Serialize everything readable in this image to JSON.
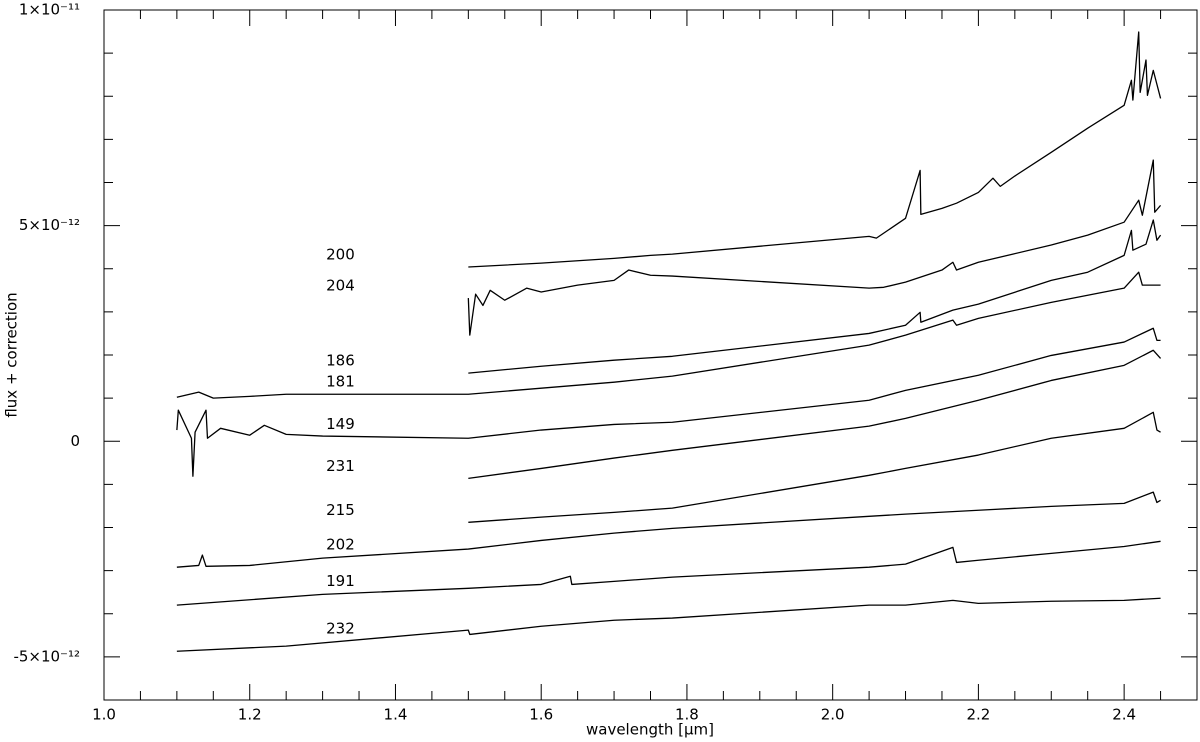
{
  "chart_data": {
    "type": "line",
    "xlabel": "wavelength [μm]",
    "ylabel": "flux + correction",
    "xlim": [
      1.0,
      2.5
    ],
    "ylim": [
      -6e-12,
      1e-11
    ],
    "xticks": [
      {
        "value": 1.0,
        "label": "1.0"
      },
      1.2,
      1.4,
      1.6,
      1.8,
      {
        "value": 2.0,
        "label": "2.0"
      },
      2.2,
      2.4
    ],
    "xminorticks": [
      1.05,
      1.1,
      1.15,
      1.25,
      1.3,
      1.35,
      1.45,
      1.5,
      1.55,
      1.65,
      1.7,
      1.75,
      1.85,
      1.9,
      1.95,
      2.05,
      2.1,
      2.15,
      2.25,
      2.3,
      2.35,
      2.45
    ],
    "yticks": [
      {
        "value": -5e-12,
        "label": "-5×10⁻¹²"
      },
      0,
      {
        "value": 5e-12,
        "label": "5×10⁻¹²"
      },
      {
        "value": 1e-11,
        "label": "1×10⁻¹¹"
      }
    ],
    "yminorticks": [
      -4e-12,
      -3e-12,
      -2e-12,
      -1e-12,
      1e-12,
      2e-12,
      3e-12,
      4e-12,
      6e-12,
      7e-12,
      8e-12,
      9e-12
    ],
    "series": [
      {
        "name": "200",
        "color": "#000000",
        "x": [
          1.5,
          1.6,
          1.7,
          1.75,
          1.78,
          2.05,
          2.06,
          2.1,
          2.12,
          2.121,
          2.15,
          2.17,
          2.2,
          2.22,
          2.23,
          2.25,
          2.3,
          2.35,
          2.4,
          2.41,
          2.412,
          2.42,
          2.422,
          2.43,
          2.432,
          2.44,
          2.45
        ],
        "values": [
          4.04e-12,
          4.13e-12,
          4.24e-12,
          4.31e-12,
          4.34e-12,
          4.75e-12,
          4.71e-12,
          5.17e-12,
          6.28e-12,
          5.26e-12,
          5.4e-12,
          5.52e-12,
          5.77e-12,
          6.1e-12,
          5.91e-12,
          6.15e-12,
          6.7e-12,
          7.26e-12,
          7.79e-12,
          8.37e-12,
          7.91e-12,
          9.49e-12,
          8.09e-12,
          8.84e-12,
          8.02e-12,
          8.6e-12,
          7.95e-12
        ]
      },
      {
        "name": "204",
        "color": "#000000",
        "x": [
          1.5,
          1.502,
          1.51,
          1.52,
          1.53,
          1.55,
          1.58,
          1.6,
          1.65,
          1.7,
          1.72,
          1.75,
          1.78,
          2.05,
          2.07,
          2.1,
          2.15,
          2.165,
          2.17,
          2.2,
          2.3,
          2.35,
          2.4,
          2.42,
          2.425,
          2.44,
          2.442,
          2.45
        ],
        "values": [
          3.32e-12,
          2.46e-12,
          3.41e-12,
          3.15e-12,
          3.5e-12,
          3.27e-12,
          3.55e-12,
          3.46e-12,
          3.62e-12,
          3.73e-12,
          3.97e-12,
          3.85e-12,
          3.83e-12,
          3.55e-12,
          3.57e-12,
          3.69e-12,
          3.97e-12,
          4.15e-12,
          3.97e-12,
          4.15e-12,
          4.55e-12,
          4.78e-12,
          5.08e-12,
          5.59e-12,
          5.24e-12,
          6.52e-12,
          5.31e-12,
          5.47e-12
        ]
      },
      {
        "name": "186",
        "color": "#000000",
        "x": [
          1.5,
          1.6,
          1.7,
          1.78,
          2.05,
          2.1,
          2.12,
          2.121,
          2.165,
          2.2,
          2.3,
          2.35,
          2.4,
          2.41,
          2.412,
          2.43,
          2.44,
          2.445,
          2.45
        ],
        "values": [
          1.58e-12,
          1.74e-12,
          1.88e-12,
          1.97e-12,
          2.5e-12,
          2.69e-12,
          2.99e-12,
          2.76e-12,
          3.04e-12,
          3.18e-12,
          3.73e-12,
          3.92e-12,
          4.31e-12,
          4.89e-12,
          4.43e-12,
          4.57e-12,
          5.13e-12,
          4.66e-12,
          4.78e-12
        ]
      },
      {
        "name": "181",
        "color": "#000000",
        "x": [
          1.1,
          1.13,
          1.15,
          1.2,
          1.25,
          1.5,
          1.6,
          1.7,
          1.78,
          2.05,
          2.1,
          2.165,
          2.17,
          2.2,
          2.3,
          2.4,
          2.42,
          2.425,
          2.45
        ],
        "values": [
          1.02e-12,
          1.14e-12,
          1e-12,
          1.04e-12,
          1.09e-12,
          1.09e-12,
          1.23e-12,
          1.37e-12,
          1.51e-12,
          2.23e-12,
          2.46e-12,
          2.81e-12,
          2.69e-12,
          2.85e-12,
          3.22e-12,
          3.55e-12,
          3.92e-12,
          3.62e-12,
          3.62e-12
        ]
      },
      {
        "name": "149",
        "color": "#000000",
        "x": [
          1.1,
          1.102,
          1.12,
          1.122,
          1.125,
          1.14,
          1.142,
          1.16,
          1.2,
          1.22,
          1.25,
          1.3,
          1.5,
          1.6,
          1.7,
          1.78,
          2.05,
          2.1,
          2.2,
          2.3,
          2.4,
          2.44,
          2.445,
          2.45
        ],
        "values": [
          2.6e-13,
          7.2e-13,
          7e-14,
          -8.1e-13,
          2.1e-13,
          7.2e-13,
          7e-14,
          3e-13,
          1.4e-13,
          3.7e-13,
          1.6e-13,
          1.2e-13,
          7e-14,
          2.6e-13,
          3.9e-13,
          4.4e-13,
          9.5e-13,
          1.18e-12,
          1.53e-12,
          1.99e-12,
          2.3e-12,
          2.62e-12,
          2.34e-12,
          2.34e-12
        ]
      },
      {
        "name": "231",
        "color": "#000000",
        "x": [
          1.5,
          1.6,
          1.7,
          1.78,
          2.05,
          2.1,
          2.2,
          2.3,
          2.4,
          2.44,
          2.45
        ],
        "values": [
          -8.6e-13,
          -6.3e-13,
          -3.9e-13,
          -2.1e-13,
          3.5e-13,
          5.3e-13,
          9.5e-13,
          1.41e-12,
          1.76e-12,
          2.11e-12,
          1.92e-12
        ]
      },
      {
        "name": "215",
        "color": "#000000",
        "x": [
          1.5,
          1.6,
          1.7,
          1.78,
          2.05,
          2.1,
          2.2,
          2.3,
          2.4,
          2.44,
          2.445,
          2.45
        ],
        "values": [
          -1.88e-12,
          -1.76e-12,
          -1.65e-12,
          -1.55e-12,
          -7.9e-13,
          -6.3e-13,
          -3.2e-13,
          7e-14,
          3e-13,
          6.7e-13,
          2.6e-13,
          2.1e-13
        ]
      },
      {
        "name": "202",
        "color": "#000000",
        "x": [
          1.1,
          1.13,
          1.135,
          1.14,
          1.2,
          1.3,
          1.5,
          1.6,
          1.7,
          1.78,
          2.05,
          2.1,
          2.2,
          2.3,
          2.4,
          2.44,
          2.445,
          2.45
        ],
        "values": [
          -2.92e-12,
          -2.88e-12,
          -2.64e-12,
          -2.9e-12,
          -2.88e-12,
          -2.71e-12,
          -2.5e-12,
          -2.3e-12,
          -2.13e-12,
          -2.02e-12,
          -1.74e-12,
          -1.69e-12,
          -1.6e-12,
          -1.51e-12,
          -1.44e-12,
          -1.18e-12,
          -1.42e-12,
          -1.37e-12
        ]
      },
      {
        "name": "191",
        "color": "#000000",
        "x": [
          1.1,
          1.3,
          1.5,
          1.6,
          1.64,
          1.642,
          1.7,
          1.78,
          2.05,
          2.1,
          2.165,
          2.17,
          2.2,
          2.3,
          2.4,
          2.45
        ],
        "values": [
          -3.8e-12,
          -3.55e-12,
          -3.41e-12,
          -3.32e-12,
          -3.13e-12,
          -3.32e-12,
          -3.25e-12,
          -3.15e-12,
          -2.92e-12,
          -2.85e-12,
          -2.46e-12,
          -2.81e-12,
          -2.76e-12,
          -2.6e-12,
          -2.44e-12,
          -2.32e-12
        ]
      },
      {
        "name": "232",
        "color": "#000000",
        "x": [
          1.1,
          1.25,
          1.5,
          1.502,
          1.6,
          1.7,
          1.78,
          2.05,
          2.1,
          2.165,
          2.2,
          2.3,
          2.4,
          2.45
        ],
        "values": [
          -4.87e-12,
          -4.75e-12,
          -4.38e-12,
          -4.48e-12,
          -4.29e-12,
          -4.15e-12,
          -4.1e-12,
          -3.8e-12,
          -3.8e-12,
          -3.69e-12,
          -3.76e-12,
          -3.71e-12,
          -3.69e-12,
          -3.64e-12
        ]
      }
    ]
  }
}
